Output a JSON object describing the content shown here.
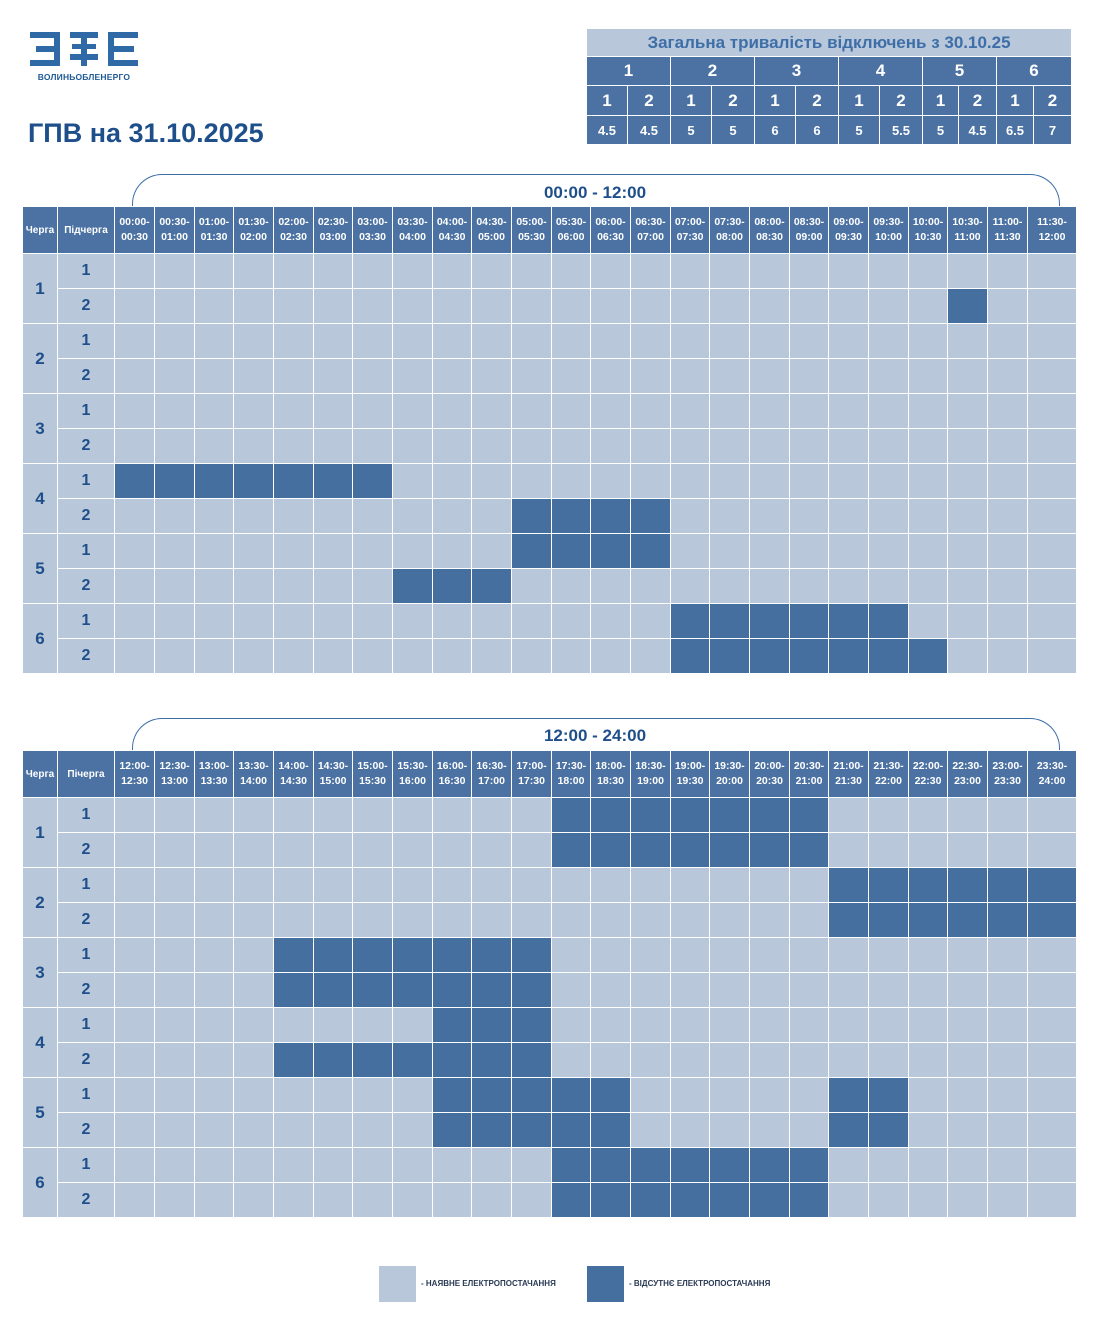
{
  "logo": {
    "text": "ВОЛИНЬОБЛЕНЕРГО"
  },
  "title": "ГПВ на 31.10.2025",
  "summary": {
    "header": "Загальна тривалість відключень з 30.10.25",
    "queues": [
      "1",
      "2",
      "3",
      "4",
      "5",
      "6"
    ],
    "subqueues": [
      "1",
      "2",
      "1",
      "2",
      "1",
      "2",
      "1",
      "2",
      "1",
      "2",
      "1",
      "2"
    ],
    "durations": [
      "4.5",
      "4.5",
      "5",
      "5",
      "6",
      "6",
      "5",
      "5.5",
      "5",
      "4.5",
      "6.5",
      "7"
    ]
  },
  "table_headers": {
    "queue_label_1": "Черга",
    "subqueue_label_1": "Підчерга",
    "queue_label_2": "Черга",
    "subqueue_label_2": "Пічерга"
  },
  "first_half": {
    "period": "00:00 - 12:00",
    "slots": [
      [
        "00:00-",
        "00:30"
      ],
      [
        "00:30-",
        "01:00"
      ],
      [
        "01:00-",
        "01:30"
      ],
      [
        "01:30-",
        "02:00"
      ],
      [
        "02:00-",
        "02:30"
      ],
      [
        "02:30-",
        "03:00"
      ],
      [
        "03:00-",
        "03:30"
      ],
      [
        "03:30-",
        "04:00"
      ],
      [
        "04:00-",
        "04:30"
      ],
      [
        "04:30-",
        "05:00"
      ],
      [
        "05:00-",
        "05:30"
      ],
      [
        "05:30-",
        "06:00"
      ],
      [
        "06:00-",
        "06:30"
      ],
      [
        "06:30-",
        "07:00"
      ],
      [
        "07:00-",
        "07:30"
      ],
      [
        "07:30-",
        "08:00"
      ],
      [
        "08:00-",
        "08:30"
      ],
      [
        "08:30-",
        "09:00"
      ],
      [
        "09:00-",
        "09:30"
      ],
      [
        "09:30-",
        "10:00"
      ],
      [
        "10:00-",
        "10:30"
      ],
      [
        "10:30-",
        "11:00"
      ],
      [
        "11:00-",
        "11:30"
      ],
      [
        "11:30-",
        "12:00"
      ]
    ],
    "rows": [
      {
        "queue": "1",
        "sub": "1",
        "off": []
      },
      {
        "queue": "1",
        "sub": "2",
        "off": [
          21
        ]
      },
      {
        "queue": "2",
        "sub": "1",
        "off": []
      },
      {
        "queue": "2",
        "sub": "2",
        "off": []
      },
      {
        "queue": "3",
        "sub": "1",
        "off": []
      },
      {
        "queue": "3",
        "sub": "2",
        "off": []
      },
      {
        "queue": "4",
        "sub": "1",
        "off": [
          0,
          1,
          2,
          3,
          4,
          5,
          6
        ]
      },
      {
        "queue": "4",
        "sub": "2",
        "off": [
          10,
          11,
          12,
          13
        ]
      },
      {
        "queue": "5",
        "sub": "1",
        "off": [
          10,
          11,
          12,
          13
        ]
      },
      {
        "queue": "5",
        "sub": "2",
        "off": [
          7,
          8,
          9
        ]
      },
      {
        "queue": "6",
        "sub": "1",
        "off": [
          14,
          15,
          16,
          17,
          18,
          19
        ]
      },
      {
        "queue": "6",
        "sub": "2",
        "off": [
          14,
          15,
          16,
          17,
          18,
          19,
          20
        ]
      }
    ]
  },
  "second_half": {
    "period": "12:00 - 24:00",
    "slots": [
      [
        "12:00-",
        "12:30"
      ],
      [
        "12:30-",
        "13:00"
      ],
      [
        "13:00-",
        "13:30"
      ],
      [
        "13:30-",
        "14:00"
      ],
      [
        "14:00-",
        "14:30"
      ],
      [
        "14:30-",
        "15:00"
      ],
      [
        "15:00-",
        "15:30"
      ],
      [
        "15:30-",
        "16:00"
      ],
      [
        "16:00-",
        "16:30"
      ],
      [
        "16:30-",
        "17:00"
      ],
      [
        "17:00-",
        "17:30"
      ],
      [
        "17:30-",
        "18:00"
      ],
      [
        "18:00-",
        "18:30"
      ],
      [
        "18:30-",
        "19:00"
      ],
      [
        "19:00-",
        "19:30"
      ],
      [
        "19:30-",
        "20:00"
      ],
      [
        "20:00-",
        "20:30"
      ],
      [
        "20:30-",
        "21:00"
      ],
      [
        "21:00-",
        "21:30"
      ],
      [
        "21:30-",
        "22:00"
      ],
      [
        "22:00-",
        "22:30"
      ],
      [
        "22:30-",
        "23:00"
      ],
      [
        "23:00-",
        "23:30"
      ],
      [
        "23:30-",
        "24:00"
      ]
    ],
    "rows": [
      {
        "queue": "1",
        "sub": "1",
        "off": [
          11,
          12,
          13,
          14,
          15,
          16,
          17
        ]
      },
      {
        "queue": "1",
        "sub": "2",
        "off": [
          11,
          12,
          13,
          14,
          15,
          16,
          17
        ]
      },
      {
        "queue": "2",
        "sub": "1",
        "off": [
          18,
          19,
          20,
          21,
          22,
          23
        ]
      },
      {
        "queue": "2",
        "sub": "2",
        "off": [
          18,
          19,
          20,
          21,
          22,
          23
        ]
      },
      {
        "queue": "3",
        "sub": "1",
        "off": [
          4,
          5,
          6,
          7,
          8,
          9,
          10
        ]
      },
      {
        "queue": "3",
        "sub": "2",
        "off": [
          4,
          5,
          6,
          7,
          8,
          9,
          10
        ]
      },
      {
        "queue": "4",
        "sub": "1",
        "off": [
          8,
          9,
          10
        ]
      },
      {
        "queue": "4",
        "sub": "2",
        "off": [
          4,
          5,
          6,
          7,
          8,
          9,
          10
        ]
      },
      {
        "queue": "5",
        "sub": "1",
        "off": [
          8,
          9,
          10,
          11,
          12,
          18,
          19
        ]
      },
      {
        "queue": "5",
        "sub": "2",
        "off": [
          8,
          9,
          10,
          11,
          12,
          18,
          19
        ]
      },
      {
        "queue": "6",
        "sub": "1",
        "off": [
          11,
          12,
          13,
          14,
          15,
          16,
          17
        ]
      },
      {
        "queue": "6",
        "sub": "2",
        "off": [
          11,
          12,
          13,
          14,
          15,
          16,
          17
        ]
      }
    ]
  },
  "legend": {
    "available": "- НАЯВНЕ ЕЛЕКТРОПОСТАЧАННЯ",
    "absent": "- ВІДСУТНЄ ЕЛЕКТРОПОСТАЧАННЯ"
  },
  "colors": {
    "available": "#b8c7d9",
    "absent": "#456f9f",
    "header": "#4b72a2",
    "text": "#1e4f8a"
  }
}
